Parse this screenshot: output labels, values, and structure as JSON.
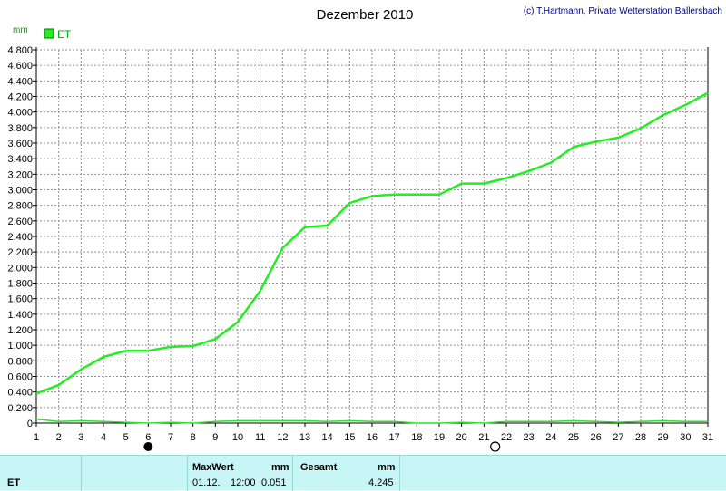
{
  "chart_data": {
    "type": "line",
    "title": "Dezember 2010",
    "copyright": "(c) T.Hartmann, Private Wetterstation Ballersbach",
    "ylabel": "mm",
    "ylim": [
      0,
      4.8
    ],
    "yticks": [
      "0",
      "0.200",
      "0.400",
      "0.600",
      "0.800",
      "1.000",
      "1.200",
      "1.400",
      "1.600",
      "1.800",
      "2.000",
      "2.200",
      "2.400",
      "2.600",
      "2.800",
      "3.000",
      "3.200",
      "3.400",
      "3.600",
      "3.800",
      "4.000",
      "4.200",
      "4.400",
      "4.600",
      "4.800"
    ],
    "x": [
      "1",
      "2",
      "3",
      "4",
      "5",
      "6",
      "7",
      "8",
      "9",
      "10",
      "11",
      "12",
      "13",
      "14",
      "15",
      "16",
      "17",
      "18",
      "19",
      "20",
      "21",
      "22",
      "23",
      "24",
      "25",
      "26",
      "27",
      "28",
      "29",
      "30",
      "31"
    ],
    "grid": true,
    "legend": "top-left",
    "series": [
      {
        "name": "ET",
        "color": "#22ee22",
        "values": [
          0.38,
          0.49,
          0.69,
          0.85,
          0.93,
          0.93,
          0.98,
          0.99,
          1.08,
          1.3,
          1.7,
          2.25,
          2.52,
          2.54,
          2.83,
          2.92,
          2.94,
          2.94,
          2.94,
          3.08,
          3.08,
          3.15,
          3.24,
          3.35,
          3.55,
          3.62,
          3.67,
          3.79,
          3.96,
          4.09,
          4.245
        ],
        "daily_values": [
          0.051,
          0.02,
          0.03,
          0.02,
          0.01,
          0.0,
          0.01,
          0.0,
          0.02,
          0.03,
          0.03,
          0.03,
          0.03,
          0.02,
          0.03,
          0.02,
          0.02,
          0.0,
          0.0,
          0.01,
          0.0,
          0.02,
          0.02,
          0.02,
          0.03,
          0.02,
          0.01,
          0.02,
          0.03,
          0.02,
          0.02
        ]
      }
    ],
    "moon_phases": [
      {
        "day": 6,
        "phase": "new-moon"
      },
      {
        "day": 21.5,
        "phase": "full-moon"
      }
    ]
  },
  "footer": {
    "series_name": "ET",
    "max_label": "MaxWert",
    "max_unit": "mm",
    "max_date": "01.12.",
    "max_time": "12:00",
    "max_value": "0.051",
    "total_label": "Gesamt",
    "total_unit": "mm",
    "total_value": "4.245"
  }
}
